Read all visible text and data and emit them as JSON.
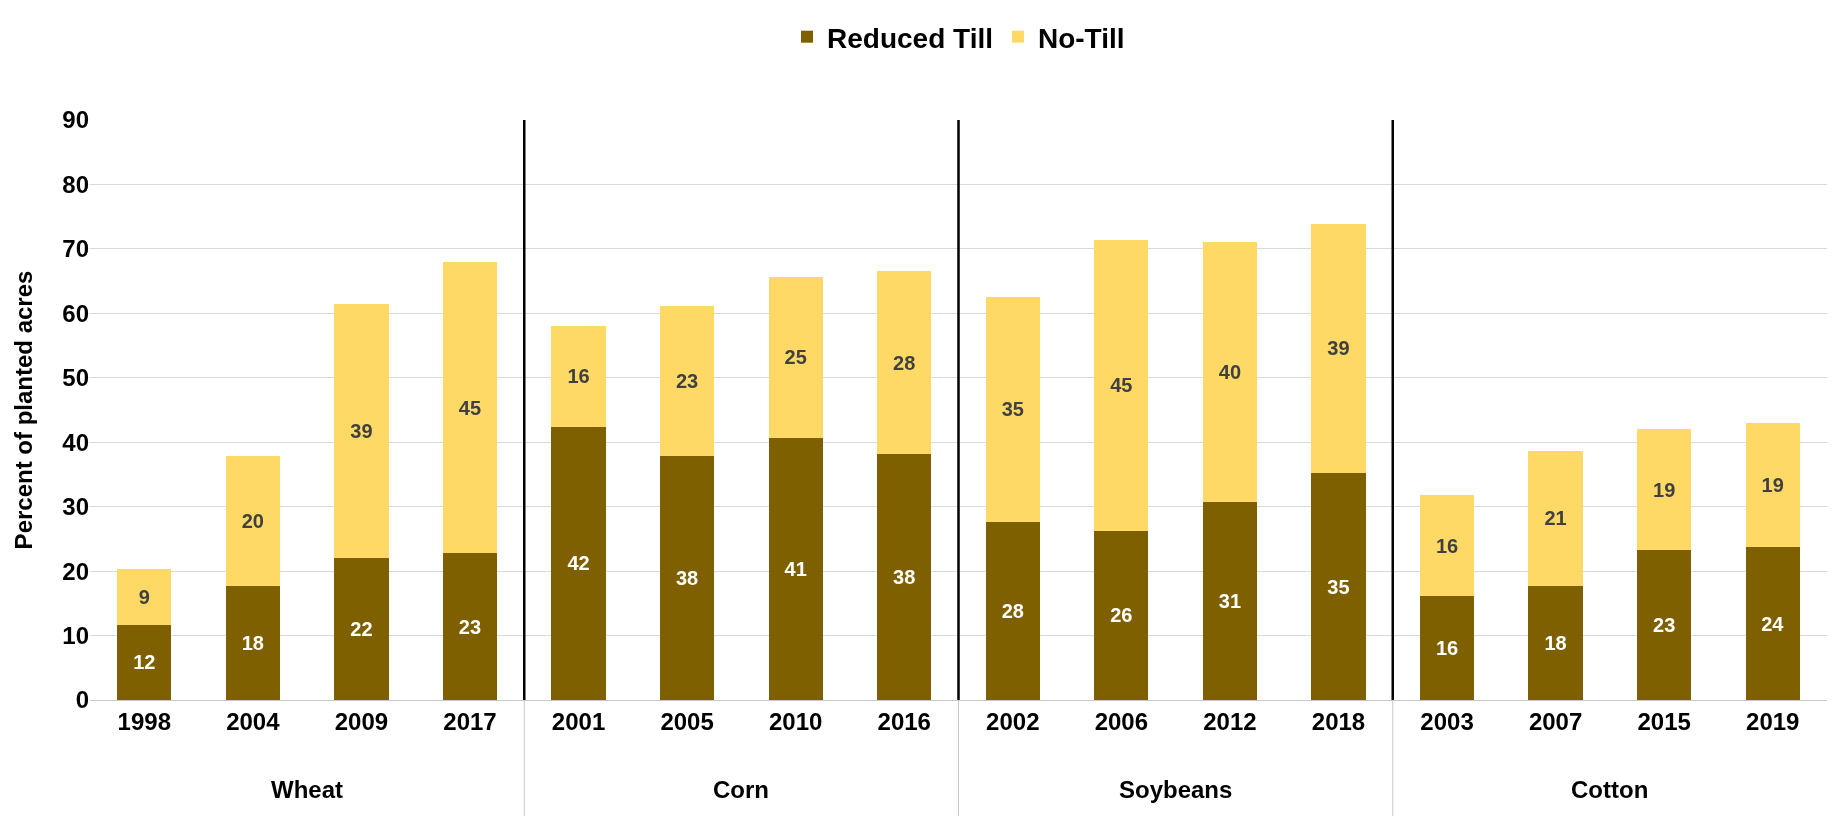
{
  "chart_data": {
    "type": "bar",
    "stacked": true,
    "ylabel": "Percent of planted acres",
    "categories": [
      "1998",
      "2004",
      "2009",
      "2017",
      "2001",
      "2005",
      "2010",
      "2016",
      "2002",
      "2006",
      "2012",
      "2018",
      "2003",
      "2007",
      "2015",
      "2019"
    ],
    "series": [
      {
        "name": "Reduced Till",
        "color": "#7f6000",
        "values": [
          11.7,
          17.7,
          22.1,
          22.8,
          42.4,
          37.8,
          40.7,
          38.2,
          27.6,
          26.3,
          30.8,
          35.2,
          16.1,
          17.7,
          23.2,
          23.7
        ],
        "value_labels": [
          "12",
          "18",
          "22",
          "23",
          "42",
          "38",
          "41",
          "38",
          "28",
          "26",
          "31",
          "35",
          "16",
          "18",
          "23",
          "24"
        ]
      },
      {
        "name": "No-Till",
        "color": "#ffd966",
        "values": [
          8.6,
          20.1,
          39.3,
          45.1,
          15.6,
          23.4,
          24.9,
          28.3,
          35.0,
          45.1,
          40.3,
          38.7,
          15.7,
          21.0,
          18.9,
          19.3
        ],
        "value_labels": [
          "9",
          "20",
          "39",
          "45",
          "16",
          "23",
          "25",
          "28",
          "35",
          "45",
          "40",
          "39",
          "16",
          "21",
          "19",
          "19"
        ]
      }
    ],
    "annotations": [
      "Wheat",
      "Corn",
      "Soybeans",
      "Cotton"
    ],
    "ylim": [
      0,
      90
    ],
    "yticks": [
      0,
      10,
      20,
      30,
      40,
      50,
      60,
      70,
      80,
      90
    ],
    "grid": "y",
    "legend": "top"
  }
}
